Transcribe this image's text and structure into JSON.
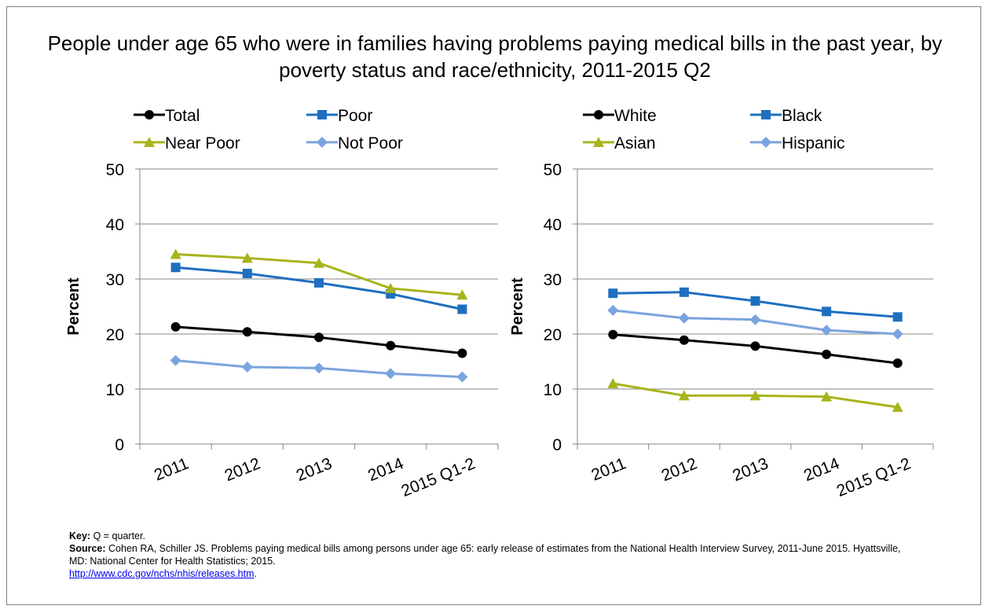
{
  "title": "People under age 65 who were in families having problems paying medical bills in the past year, by poverty status and race/ethnicity, 2011-2015 Q2",
  "footnote": {
    "key_label": "Key:",
    "key_text": "Q = quarter.",
    "source_label": "Source:",
    "source_text": "Cohen RA, Schiller JS. Problems paying medical bills among persons under age 65: early release of estimates from the National Health Interview Survey, 2011-June 2015. Hyattsville, MD: National Center for Health Statistics; 2015.",
    "link_text": "http://www.cdc.gov/nchs/nhis/releases.htm",
    "link_suffix": "."
  },
  "chart_data": [
    {
      "type": "line",
      "categories": [
        "2011",
        "2012",
        "2013",
        "2014",
        "2015 Q1-2"
      ],
      "ylabel": "Percent",
      "ylim": [
        0,
        50
      ],
      "yticks": [
        0,
        10,
        20,
        30,
        40,
        50
      ],
      "grid": true,
      "legend_position": "top",
      "series": [
        {
          "name": "Total",
          "color": "#000000",
          "marker": "circle",
          "values": [
            21.3,
            20.4,
            19.4,
            17.9,
            16.5
          ]
        },
        {
          "name": "Poor",
          "color": "#1f6fbf",
          "marker": "square",
          "values": [
            32.1,
            31.0,
            29.3,
            27.3,
            24.5
          ]
        },
        {
          "name": "Near Poor",
          "color": "#a8b41c",
          "marker": "triangle",
          "values": [
            34.5,
            33.8,
            32.9,
            28.3,
            27.1
          ]
        },
        {
          "name": "Not Poor",
          "color": "#7aa4dd",
          "marker": "diamond",
          "values": [
            15.2,
            14.0,
            13.8,
            12.8,
            12.2
          ]
        }
      ]
    },
    {
      "type": "line",
      "categories": [
        "2011",
        "2012",
        "2013",
        "2014",
        "2015 Q1-2"
      ],
      "ylabel": "Percent",
      "ylim": [
        0,
        50
      ],
      "yticks": [
        0,
        10,
        20,
        30,
        40,
        50
      ],
      "grid": true,
      "legend_position": "top",
      "series": [
        {
          "name": "White",
          "color": "#000000",
          "marker": "circle",
          "values": [
            19.9,
            18.9,
            17.8,
            16.3,
            14.7
          ]
        },
        {
          "name": "Black",
          "color": "#1f6fbf",
          "marker": "square",
          "values": [
            27.4,
            27.6,
            26.0,
            24.1,
            23.1
          ]
        },
        {
          "name": "Asian",
          "color": "#a8b41c",
          "marker": "triangle",
          "values": [
            11.0,
            8.8,
            8.8,
            8.6,
            6.7
          ]
        },
        {
          "name": "Hispanic",
          "color": "#7aa4dd",
          "marker": "diamond",
          "values": [
            24.3,
            22.9,
            22.6,
            20.7,
            20.0
          ]
        }
      ]
    }
  ]
}
